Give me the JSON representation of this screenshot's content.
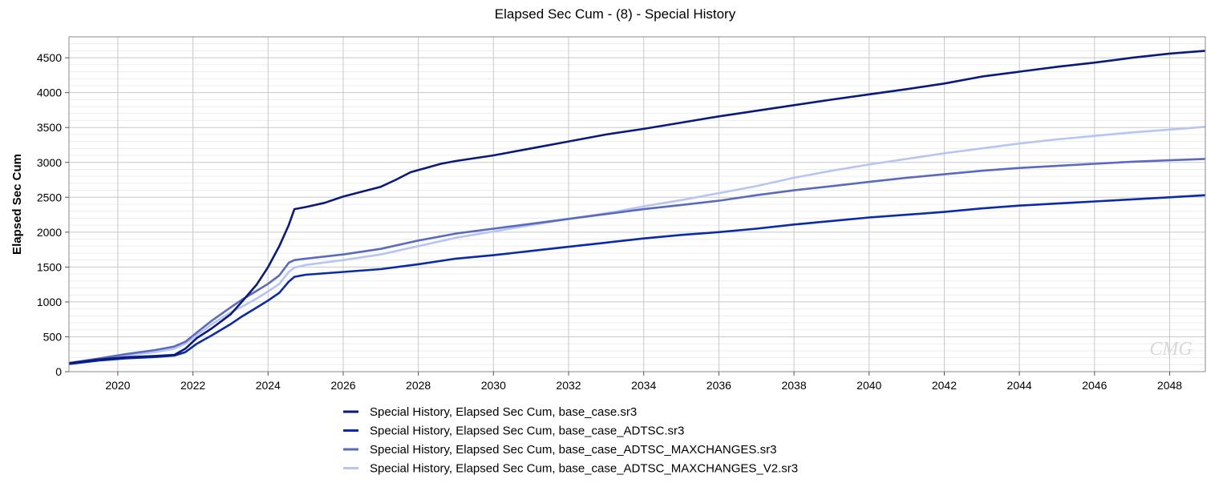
{
  "chart_data": {
    "type": "line",
    "title": "Elapsed Sec Cum - (8) - Special History",
    "xlabel": "",
    "ylabel": "Elapsed Sec Cum",
    "xlim": [
      2018.7,
      2048.95
    ],
    "ylim": [
      0,
      4800
    ],
    "x_ticks": [
      "2020",
      "2022",
      "2024",
      "2026",
      "2028",
      "2030",
      "2032",
      "2034",
      "2036",
      "2038",
      "2040",
      "2042",
      "2044",
      "2046",
      "2048"
    ],
    "y_ticks": [
      "0",
      "500",
      "1000",
      "1500",
      "2000",
      "2500",
      "3000",
      "3500",
      "4000",
      "4500"
    ],
    "grid": true,
    "legend_position": "bottom",
    "watermark": "CMG",
    "series": [
      {
        "name": "Special History, Elapsed Sec Cum, base_case.sr3",
        "color": "#0a1a7a",
        "points": [
          [
            2018.7,
            120
          ],
          [
            2019.5,
            175
          ],
          [
            2020.2,
            205
          ],
          [
            2021,
            225
          ],
          [
            2021.5,
            240
          ],
          [
            2021.8,
            330
          ],
          [
            2022.1,
            480
          ],
          [
            2022.5,
            620
          ],
          [
            2023,
            820
          ],
          [
            2023.3,
            1000
          ],
          [
            2023.7,
            1250
          ],
          [
            2024,
            1500
          ],
          [
            2024.3,
            1800
          ],
          [
            2024.55,
            2100
          ],
          [
            2024.7,
            2330
          ],
          [
            2025,
            2360
          ],
          [
            2025.5,
            2420
          ],
          [
            2026,
            2510
          ],
          [
            2026.5,
            2580
          ],
          [
            2027,
            2650
          ],
          [
            2027.4,
            2750
          ],
          [
            2027.8,
            2860
          ],
          [
            2028.2,
            2920
          ],
          [
            2028.6,
            2980
          ],
          [
            2029,
            3020
          ],
          [
            2030,
            3100
          ],
          [
            2031,
            3200
          ],
          [
            2032,
            3300
          ],
          [
            2033,
            3400
          ],
          [
            2034,
            3480
          ],
          [
            2035,
            3570
          ],
          [
            2036,
            3660
          ],
          [
            2037,
            3740
          ],
          [
            2038,
            3820
          ],
          [
            2039,
            3900
          ],
          [
            2040,
            3975
          ],
          [
            2041,
            4050
          ],
          [
            2042,
            4130
          ],
          [
            2043,
            4230
          ],
          [
            2044,
            4300
          ],
          [
            2045,
            4370
          ],
          [
            2046,
            4430
          ],
          [
            2047,
            4500
          ],
          [
            2048,
            4560
          ],
          [
            2048.95,
            4600
          ]
        ]
      },
      {
        "name": "Special History, Elapsed Sec Cum, base_case_ADTSC.sr3",
        "color": "#0b2aa8",
        "points": [
          [
            2018.7,
            110
          ],
          [
            2019.5,
            160
          ],
          [
            2020.2,
            190
          ],
          [
            2021,
            210
          ],
          [
            2021.5,
            230
          ],
          [
            2021.8,
            280
          ],
          [
            2022.1,
            400
          ],
          [
            2022.5,
            520
          ],
          [
            2023,
            680
          ],
          [
            2023.3,
            790
          ],
          [
            2023.7,
            920
          ],
          [
            2024,
            1020
          ],
          [
            2024.3,
            1130
          ],
          [
            2024.55,
            1290
          ],
          [
            2024.7,
            1360
          ],
          [
            2025,
            1390
          ],
          [
            2026,
            1430
          ],
          [
            2027,
            1470
          ],
          [
            2028,
            1540
          ],
          [
            2029,
            1620
          ],
          [
            2030,
            1670
          ],
          [
            2031,
            1730
          ],
          [
            2032,
            1790
          ],
          [
            2033,
            1850
          ],
          [
            2034,
            1910
          ],
          [
            2035,
            1960
          ],
          [
            2036,
            2000
          ],
          [
            2037,
            2050
          ],
          [
            2038,
            2110
          ],
          [
            2039,
            2160
          ],
          [
            2040,
            2210
          ],
          [
            2041,
            2250
          ],
          [
            2042,
            2290
          ],
          [
            2043,
            2340
          ],
          [
            2044,
            2380
          ],
          [
            2045,
            2410
          ],
          [
            2046,
            2440
          ],
          [
            2047,
            2470
          ],
          [
            2048,
            2500
          ],
          [
            2048.95,
            2530
          ]
        ]
      },
      {
        "name": "Special History, Elapsed Sec Cum, base_case_ADTSC_MAXCHANGES.sr3",
        "color": "#5a6abf",
        "points": [
          [
            2018.7,
            125
          ],
          [
            2019.5,
            190
          ],
          [
            2020.2,
            250
          ],
          [
            2021,
            310
          ],
          [
            2021.5,
            360
          ],
          [
            2021.8,
            430
          ],
          [
            2022.1,
            560
          ],
          [
            2022.5,
            730
          ],
          [
            2023,
            920
          ],
          [
            2023.3,
            1030
          ],
          [
            2023.7,
            1160
          ],
          [
            2024,
            1260
          ],
          [
            2024.3,
            1380
          ],
          [
            2024.55,
            1560
          ],
          [
            2024.7,
            1600
          ],
          [
            2025,
            1620
          ],
          [
            2026,
            1680
          ],
          [
            2027,
            1760
          ],
          [
            2028,
            1880
          ],
          [
            2029,
            1980
          ],
          [
            2030,
            2050
          ],
          [
            2031,
            2120
          ],
          [
            2032,
            2190
          ],
          [
            2033,
            2260
          ],
          [
            2034,
            2330
          ],
          [
            2035,
            2390
          ],
          [
            2036,
            2450
          ],
          [
            2037,
            2530
          ],
          [
            2038,
            2600
          ],
          [
            2039,
            2660
          ],
          [
            2040,
            2720
          ],
          [
            2041,
            2780
          ],
          [
            2042,
            2830
          ],
          [
            2043,
            2880
          ],
          [
            2044,
            2920
          ],
          [
            2045,
            2950
          ],
          [
            2046,
            2980
          ],
          [
            2047,
            3010
          ],
          [
            2048,
            3030
          ],
          [
            2048.95,
            3050
          ]
        ]
      },
      {
        "name": "Special History, Elapsed Sec Cum, base_case_ADTSC_MAXCHANGES_V2.sr3",
        "color": "#b8c4f2",
        "points": [
          [
            2018.7,
            115
          ],
          [
            2019.5,
            175
          ],
          [
            2020.2,
            230
          ],
          [
            2021,
            280
          ],
          [
            2021.5,
            330
          ],
          [
            2021.8,
            400
          ],
          [
            2022.1,
            520
          ],
          [
            2022.5,
            680
          ],
          [
            2023,
            850
          ],
          [
            2023.3,
            930
          ],
          [
            2023.7,
            1050
          ],
          [
            2024,
            1150
          ],
          [
            2024.3,
            1260
          ],
          [
            2024.55,
            1430
          ],
          [
            2024.7,
            1490
          ],
          [
            2025,
            1530
          ],
          [
            2026,
            1600
          ],
          [
            2027,
            1680
          ],
          [
            2028,
            1800
          ],
          [
            2029,
            1920
          ],
          [
            2030,
            2010
          ],
          [
            2031,
            2100
          ],
          [
            2032,
            2190
          ],
          [
            2033,
            2270
          ],
          [
            2034,
            2370
          ],
          [
            2035,
            2460
          ],
          [
            2036,
            2560
          ],
          [
            2037,
            2660
          ],
          [
            2038,
            2780
          ],
          [
            2039,
            2880
          ],
          [
            2040,
            2970
          ],
          [
            2041,
            3050
          ],
          [
            2042,
            3130
          ],
          [
            2043,
            3200
          ],
          [
            2044,
            3270
          ],
          [
            2045,
            3330
          ],
          [
            2046,
            3380
          ],
          [
            2047,
            3430
          ],
          [
            2048,
            3470
          ],
          [
            2048.95,
            3510
          ]
        ]
      }
    ]
  }
}
